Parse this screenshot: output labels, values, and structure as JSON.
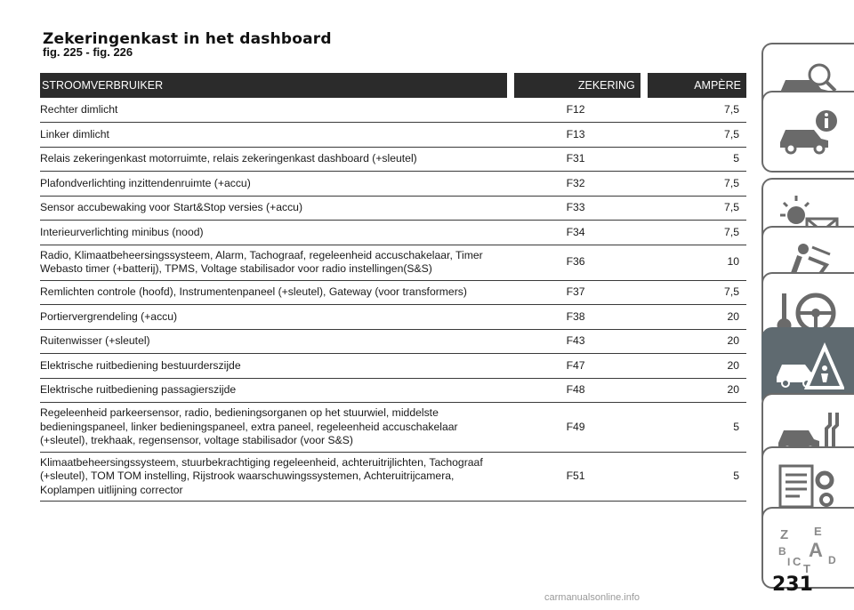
{
  "header": {
    "title": "Zekeringenkast in het dashboard",
    "subtitle": "fig. 225 - fig. 226"
  },
  "table": {
    "columns": [
      "STROOMVERBRUIKER",
      "ZEKERING",
      "AMPÈRE"
    ],
    "rows": [
      {
        "consumer": "Rechter dimlicht",
        "fuse": "F12",
        "amp": "7,5"
      },
      {
        "consumer": "Linker dimlicht",
        "fuse": "F13",
        "amp": "7,5"
      },
      {
        "consumer": "Relais zekeringenkast motorruimte, relais zekeringenkast dashboard (+sleutel)",
        "fuse": "F31",
        "amp": "5"
      },
      {
        "consumer": "Plafondverlichting inzittendenruimte (+accu)",
        "fuse": "F32",
        "amp": "7,5"
      },
      {
        "consumer": "Sensor accubewaking voor Start&Stop versies (+accu)",
        "fuse": "F33",
        "amp": "7,5"
      },
      {
        "consumer": "Interieurverlichting minibus (nood)",
        "fuse": "F34",
        "amp": "7,5"
      },
      {
        "consumer": "Radio, Klimaatbeheersingssysteem, Alarm, Tachograaf, regeleenheid accuschakelaar, Timer Webasto timer (+batterij), TPMS, Voltage stabilisador voor radio instellingen(S&S)",
        "fuse": "F36",
        "amp": "10"
      },
      {
        "consumer": "Remlichten controle (hoofd), Instrumentenpaneel (+sleutel), Gateway (voor transformers)",
        "fuse": "F37",
        "amp": "7,5"
      },
      {
        "consumer": "Portiervergrendeling (+accu)",
        "fuse": "F38",
        "amp": "20"
      },
      {
        "consumer": "Ruitenwisser (+sleutel)",
        "fuse": "F43",
        "amp": "20"
      },
      {
        "consumer": "Elektrische ruitbediening bestuurderszijde",
        "fuse": "F47",
        "amp": "20"
      },
      {
        "consumer": "Elektrische ruitbediening passagierszijde",
        "fuse": "F48",
        "amp": "20"
      },
      {
        "consumer": "Regeleenheid parkeersensor, radio, bedieningsorganen op het stuurwiel, middelste bedieningspaneel, linker bedieningspaneel, extra paneel, regeleenheid accuschakelaar (+sleutel), trekhaak, regensensor, voltage stabilisador (voor S&S)",
        "fuse": "F49",
        "amp": "5"
      },
      {
        "consumer": "Klimaatbeheersingssysteem, stuurbekrachtiging regeleenheid, achteruitrijlichten, Tachograaf (+sleutel), TOM TOM instelling, Rijstrook waarschuwingssystemen, Achteruitrijcamera, Koplampen uitlijning corrector",
        "fuse": "F51",
        "amp": "5"
      }
    ]
  },
  "side_tabs": [
    {
      "icon": "car-search-icon",
      "active": false
    },
    {
      "icon": "car-info-icon",
      "active": false
    },
    {
      "icon": "lights-message-icon",
      "active": false
    },
    {
      "icon": "seat-airbag-icon",
      "active": false
    },
    {
      "icon": "key-steering-wheel-icon",
      "active": false
    },
    {
      "icon": "car-warning-icon",
      "active": true
    },
    {
      "icon": "car-service-icon",
      "active": false
    },
    {
      "icon": "technical-data-icon",
      "active": false
    },
    {
      "icon": "alphabetical-index-icon",
      "active": false
    }
  ],
  "index_letters": [
    "Z",
    "E",
    "B",
    "A",
    "C",
    "T",
    "D",
    "I"
  ],
  "page_number": "231",
  "watermark": "carmanualsonline.info",
  "colors": {
    "header_bg": "#2b2b2b",
    "tab_active": "#5f6a70",
    "tab_border": "#6a6a6a"
  }
}
